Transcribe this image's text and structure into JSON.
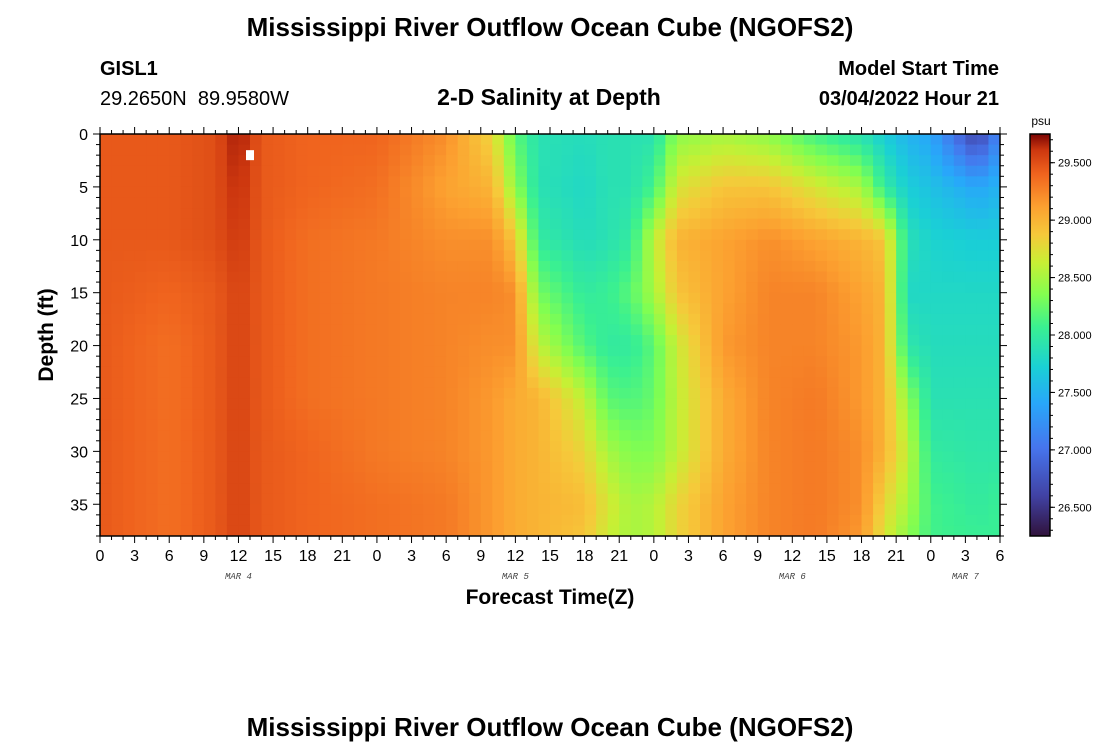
{
  "chart_data": {
    "type": "heatmap",
    "title": "Mississippi River Outflow Ocean Cube (NGOFS2)",
    "station": "GISL1",
    "coordinates": "29.2650N  89.9580W",
    "subtitle": "2-D Salinity at Depth",
    "model_start_label": "Model Start Time",
    "model_start_value": "03/04/2022 Hour 21",
    "xlabel": "Forecast Time(Z)",
    "ylabel": "Depth (ft)",
    "footer_title": "Mississippi River Outflow Ocean Cube (NGOFS2)",
    "x_hours_range": [
      0,
      78
    ],
    "x_ticks": [
      "0",
      "3",
      "6",
      "9",
      "12",
      "15",
      "18",
      "21",
      "0",
      "3",
      "6",
      "9",
      "12",
      "15",
      "18",
      "21",
      "0",
      "3",
      "6",
      "9",
      "12",
      "15",
      "18",
      "21",
      "0",
      "3",
      "6"
    ],
    "date_labels": [
      {
        "label": "MAR 4",
        "hour": 12
      },
      {
        "label": "MAR 5",
        "hour": 36
      },
      {
        "label": "MAR 6",
        "hour": 60
      },
      {
        "label": "MAR 7",
        "hour": 75
      }
    ],
    "ylim": [
      0,
      38
    ],
    "y_ticks": [
      0,
      5,
      10,
      15,
      20,
      25,
      30,
      35
    ],
    "y_inverted": true,
    "colorbar": {
      "unit": "psu",
      "range": [
        26.25,
        29.75
      ],
      "ticks": [
        "29.500",
        "29.000",
        "28.500",
        "28.000",
        "27.500",
        "27.000",
        "26.500"
      ],
      "tick_values": [
        29.5,
        29.0,
        28.5,
        28.0,
        27.5,
        27.0,
        26.5
      ]
    },
    "grid_hours": [
      0,
      6,
      10,
      12,
      14,
      18,
      24,
      30,
      34,
      36,
      38,
      42,
      44,
      46,
      48,
      50,
      54,
      58,
      62,
      66,
      68,
      70,
      72,
      76,
      78
    ],
    "grid_depths": [
      0,
      5,
      10,
      15,
      20,
      25,
      30,
      35,
      38
    ],
    "salinity_grid": [
      [
        29.45,
        29.45,
        29.45,
        29.45,
        29.45,
        29.45,
        29.45,
        29.45,
        29.45
      ],
      [
        29.45,
        29.45,
        29.45,
        29.4,
        29.35,
        29.35,
        29.35,
        29.35,
        29.35
      ],
      [
        29.5,
        29.5,
        29.5,
        29.45,
        29.45,
        29.45,
        29.45,
        29.45,
        29.45
      ],
      [
        29.7,
        29.65,
        29.6,
        29.55,
        29.55,
        29.55,
        29.55,
        29.55,
        29.55
      ],
      [
        29.45,
        29.45,
        29.45,
        29.45,
        29.45,
        29.45,
        29.45,
        29.45,
        29.45
      ],
      [
        29.4,
        29.4,
        29.35,
        29.35,
        29.35,
        29.35,
        29.4,
        29.4,
        29.4
      ],
      [
        29.4,
        29.35,
        29.3,
        29.3,
        29.3,
        29.3,
        29.3,
        29.35,
        29.35
      ],
      [
        29.2,
        29.1,
        29.2,
        29.25,
        29.25,
        29.25,
        29.25,
        29.3,
        29.3
      ],
      [
        28.8,
        29.0,
        29.2,
        29.25,
        29.2,
        29.15,
        29.15,
        29.15,
        29.15
      ],
      [
        28.2,
        28.4,
        28.9,
        29.2,
        29.2,
        29.05,
        29.05,
        29.05,
        29.05
      ],
      [
        27.9,
        27.9,
        28.0,
        28.3,
        28.6,
        29.0,
        29.0,
        29.0,
        29.0
      ],
      [
        27.85,
        27.8,
        27.85,
        28.0,
        28.15,
        28.6,
        28.8,
        28.95,
        28.9
      ],
      [
        27.9,
        27.9,
        27.9,
        28.05,
        28.0,
        28.2,
        28.5,
        28.7,
        28.65
      ],
      [
        27.9,
        27.9,
        28.0,
        28.2,
        28.0,
        28.15,
        28.35,
        28.5,
        28.5
      ],
      [
        27.9,
        28.1,
        28.6,
        28.5,
        28.2,
        28.25,
        28.35,
        28.55,
        28.55
      ],
      [
        28.4,
        28.7,
        29.0,
        28.9,
        28.65,
        28.6,
        28.6,
        28.8,
        28.8
      ],
      [
        28.5,
        28.9,
        29.1,
        29.1,
        29.15,
        29.05,
        29.05,
        29.1,
        29.1
      ],
      [
        28.4,
        28.9,
        29.2,
        29.25,
        29.25,
        29.25,
        29.25,
        29.25,
        29.25
      ],
      [
        28.1,
        28.7,
        29.1,
        29.25,
        29.25,
        29.3,
        29.3,
        29.3,
        29.3
      ],
      [
        27.9,
        28.5,
        29.0,
        29.1,
        29.15,
        29.15,
        29.2,
        29.2,
        29.15
      ],
      [
        27.7,
        28.0,
        28.9,
        29.0,
        29.0,
        29.0,
        29.0,
        28.8,
        28.7
      ],
      [
        27.5,
        27.7,
        27.9,
        27.8,
        27.95,
        28.4,
        28.6,
        28.5,
        28.4
      ],
      [
        27.4,
        27.6,
        27.75,
        27.8,
        27.85,
        27.9,
        28.0,
        28.1,
        28.1
      ],
      [
        26.6,
        27.4,
        27.7,
        27.8,
        27.85,
        27.9,
        27.95,
        28.0,
        28.05
      ],
      [
        27.2,
        27.5,
        27.7,
        27.8,
        27.85,
        27.9,
        27.95,
        28.05,
        28.05
      ]
    ],
    "missing_cells": [
      {
        "hour": 13,
        "depth": 2
      }
    ]
  }
}
